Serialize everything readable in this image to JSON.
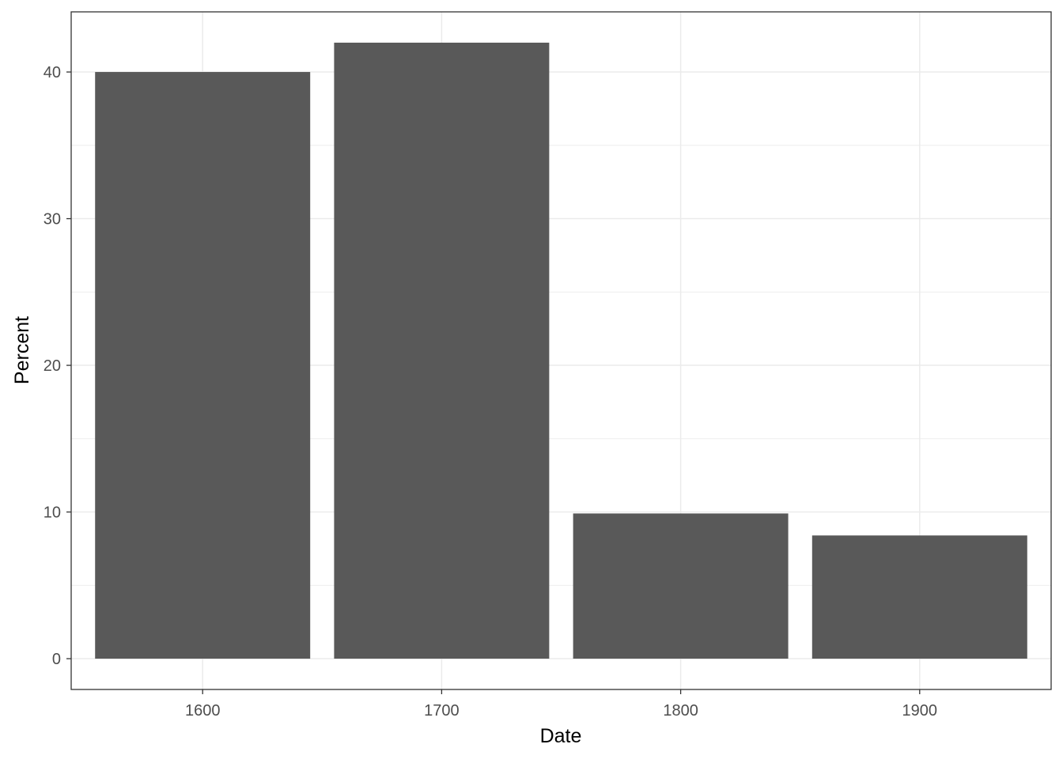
{
  "chart_data": {
    "type": "bar",
    "categories": [
      "1600",
      "1700",
      "1800",
      "1900"
    ],
    "x": [
      1600,
      1700,
      1800,
      1900
    ],
    "values": [
      40,
      42,
      9.9,
      8.4
    ],
    "title": "",
    "xlabel": "Date",
    "ylabel": "Percent",
    "xlim": [
      1545,
      1955
    ],
    "ylim": [
      -2.1,
      44.1
    ],
    "y_ticks": [
      0,
      10,
      20,
      30,
      40
    ],
    "x_ticks": [
      1600,
      1700,
      1800,
      1900
    ],
    "grid": true,
    "legend": "none",
    "colors": {
      "bar": "#595959",
      "grid": "#ebebeb",
      "panel_border": "#333333",
      "tick_text": "#4d4d4d",
      "axis_title": "#000000"
    }
  }
}
